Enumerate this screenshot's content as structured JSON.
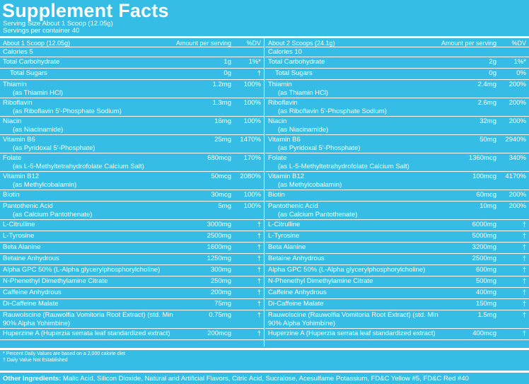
{
  "title": "Supplement Facts",
  "serving_size": "Serving Size About 1 Scoop (12.05g)",
  "servings_per_container": "Servings per container 40",
  "left": {
    "header": {
      "serving": "About 1 Scoop (12.05g)",
      "amount": "Amount per serving",
      "dv": "%DV"
    },
    "calories": "Calories 5",
    "rows": [
      {
        "name": "Total Carbohydrate",
        "amount": "1g",
        "dv": "1%*"
      },
      {
        "name": "Total Sugars",
        "amount": "0g",
        "dv": "†",
        "indent": true
      },
      {
        "name": "Thiamin",
        "sub": "(as Thiamin HCl)",
        "amount": "1.2mg",
        "dv": "100%"
      },
      {
        "name": "Riboflavin",
        "sub": "(as Riboflavin 5'-Phosphate Sodium)",
        "amount": "1.3mg",
        "dv": "100%"
      },
      {
        "name": "Niacin",
        "sub": "(as Niacinamide)",
        "amount": "16mg",
        "dv": "100%"
      },
      {
        "name": "Vitamin B6",
        "sub": "(as Pyridoxal 5'-Phosphate)",
        "amount": "25mg",
        "dv": "1470%"
      },
      {
        "name": "Folate",
        "sub": "(as L-5-Methyltetrahydrofolate Calcium Salt)",
        "amount": "680mcg",
        "dv": "170%"
      },
      {
        "name": "Vitamin B12",
        "sub": "(as Methylcobalamin)",
        "amount": "50mcg",
        "dv": "2080%"
      },
      {
        "name": "Biotin",
        "amount": "30mcg",
        "dv": "100%"
      },
      {
        "name": "Pantothenic Acid",
        "sub": "(as Calcium Pantothenate)",
        "amount": "5mg",
        "dv": "100%"
      },
      {
        "name": "L-Citrulline",
        "amount": "3000mg",
        "dv": "†"
      },
      {
        "name": "L-Tyrosine",
        "amount": "2500mg",
        "dv": "†"
      },
      {
        "name": "Beta Alanine",
        "amount": "1600mg",
        "dv": "†"
      },
      {
        "name": "Betaine Anhydrous",
        "amount": "1250mg",
        "dv": "†"
      },
      {
        "name": "Alpha GPC 50% (L-Alpha glycerylphosphorylcholine)",
        "amount": "300mg",
        "dv": "†"
      },
      {
        "name": "N-Phenethyl Dimethylamine Citrate",
        "amount": "250mg",
        "dv": "†"
      },
      {
        "name": "Caffeine Anhydrous",
        "amount": "200mg",
        "dv": "†"
      },
      {
        "name": "Di-Caffeine Malate",
        "amount": "75mg",
        "dv": "†"
      },
      {
        "name": "Rauwolscine (Rauwolfia Vomitoria Root Extract) (std. Min 90% Alpha Yohimbine)",
        "amount": "0.75mg",
        "dv": "†",
        "wrap": true
      },
      {
        "name": "Huperzine A (Huperzia serrata leaf standardized extract)",
        "amount": "200mcg",
        "dv": "†"
      }
    ]
  },
  "right": {
    "header": {
      "serving": "About 2 Scoops (24.1g)",
      "amount": "Amount per serving",
      "dv": "%DV"
    },
    "calories": "Calories 10",
    "rows": [
      {
        "name": "Total Carbohydrate",
        "amount": "2g",
        "dv": "1%*"
      },
      {
        "name": "Total Sugars",
        "amount": "0g",
        "dv": "0%",
        "indent": true
      },
      {
        "name": "Thiamin",
        "sub": "(as Thiamin HCl)",
        "amount": "2.4mg",
        "dv": "200%"
      },
      {
        "name": "Riboflavin",
        "sub": "(as Riboflavin 5'-Phosphate Sodium)",
        "amount": "2.6mg",
        "dv": "200%"
      },
      {
        "name": "Niacin",
        "sub": "(as Niacinamide)",
        "amount": "32mg",
        "dv": "200%"
      },
      {
        "name": "Vitamin B6",
        "sub": "(as Pyridoxal 5'-Phosphate)",
        "amount": "50mg",
        "dv": "2940%"
      },
      {
        "name": "Folate",
        "sub": "(as L-5-Methyltetrahydrofolate Calcium Salt)",
        "amount": "1360mcg",
        "dv": "340%"
      },
      {
        "name": "Vitamin B12",
        "sub": "(as Methylcobalamin)",
        "amount": "100mcg",
        "dv": "4170%"
      },
      {
        "name": "Biotin",
        "amount": "60mcg",
        "dv": "200%"
      },
      {
        "name": "Pantothenic Acid",
        "sub": "(as Calcium Pantothenate)",
        "amount": "10mg",
        "dv": "200%"
      },
      {
        "name": "L-Citrulline",
        "amount": "6000mg",
        "dv": "†"
      },
      {
        "name": "L-Tyrosine",
        "amount": "5000mg",
        "dv": "†"
      },
      {
        "name": "Beta Alanine",
        "amount": "3200mg",
        "dv": "†"
      },
      {
        "name": "Betaine Anhydrous",
        "amount": "2500mg",
        "dv": "†"
      },
      {
        "name": "Alpha GPC 50% (L-Alpha glycerylphosphorylcholine)",
        "amount": "600mg",
        "dv": "†"
      },
      {
        "name": "N-Phenethyl Dimethylamine Citrate",
        "amount": "500mg",
        "dv": "†"
      },
      {
        "name": "Caffeine Anhydrous",
        "amount": "400mg",
        "dv": "†"
      },
      {
        "name": "Di-Caffeine Malate",
        "amount": "150mg",
        "dv": "†"
      },
      {
        "name": "Rauwolscine (Rauwolfia Vomitoria Root Extract) (std. Min 90% Alpha Yohimbine)",
        "amount": "1.5mg",
        "dv": "†",
        "wrap": true
      },
      {
        "name": "Huperzine A (Huperzia serrata leaf standardized extract)",
        "amount": "400mcg",
        "dv": "†"
      }
    ]
  },
  "footnotes": {
    "dv_note": "* Percent Daily Values are based on a 2,000 calorie diet",
    "dagger_note": "† Daily Value Not Established"
  },
  "other_ingredients": {
    "label": "Other Ingredients:",
    "text": " Malic Acid, Silicon Dioxide, Natural and Artificial Flavors, Citric Acid, Sucralose, Acesulfame Potassium, FD&C Yellow #5, FD&C Red #40"
  },
  "colors": {
    "background": "#35bde6",
    "text": "#ffffff"
  }
}
